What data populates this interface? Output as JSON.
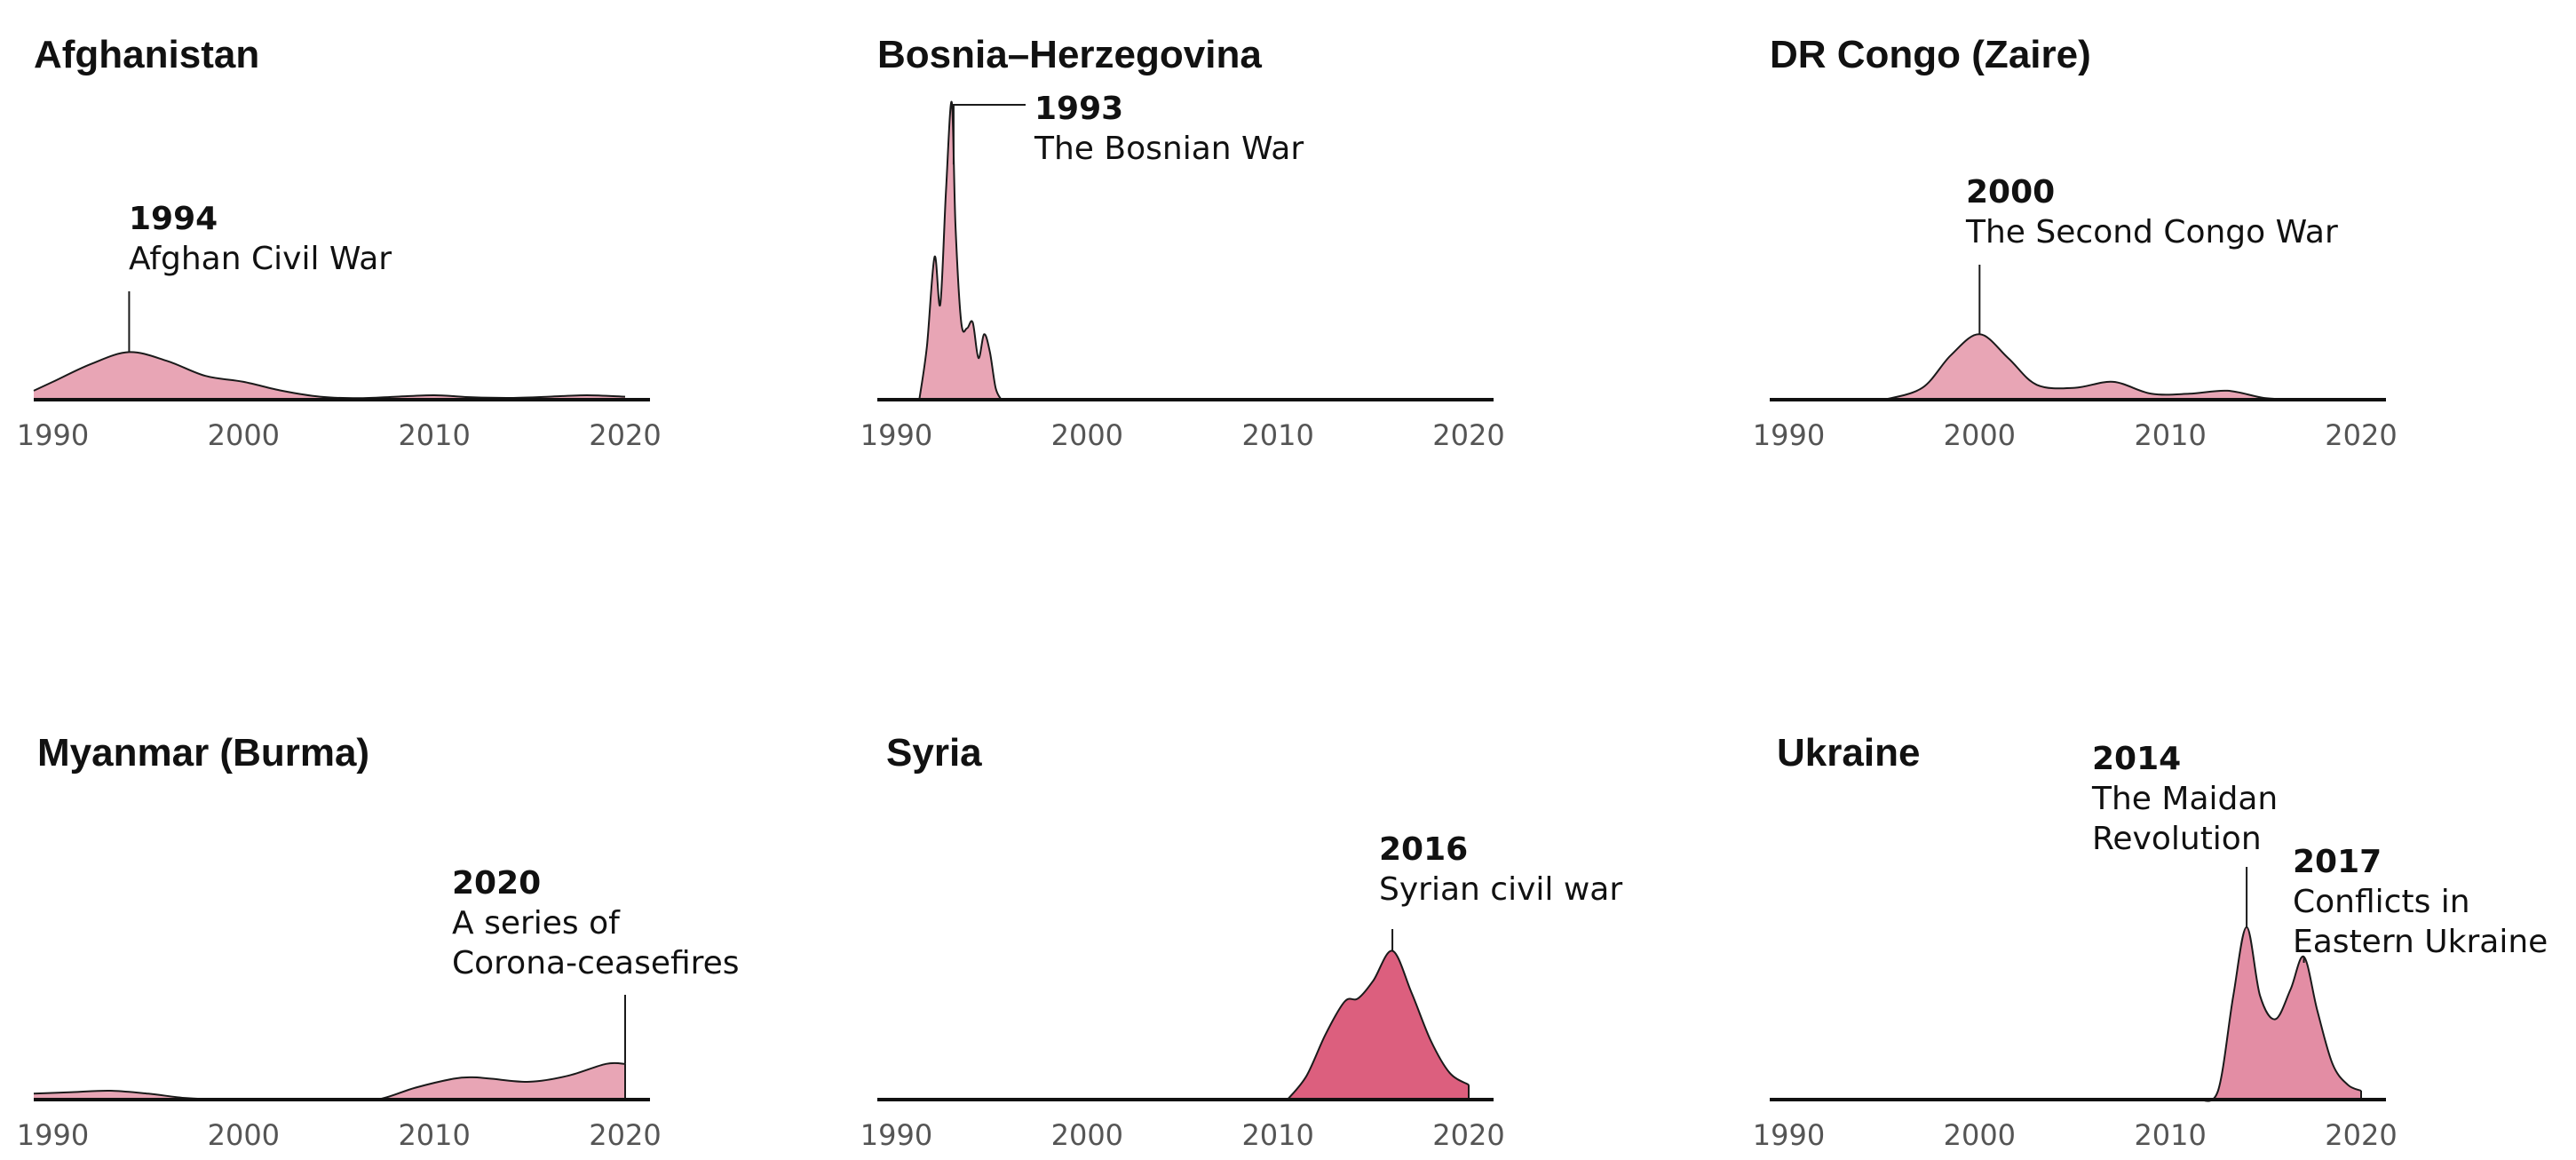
{
  "chart_data": [
    {
      "type": "area",
      "title": "Afghanistan",
      "xlim": [
        1989,
        2020
      ],
      "ylim": [
        0,
        1
      ],
      "x_ticks": [
        "1990",
        "2000",
        "2010",
        "2020"
      ],
      "color": "#e8a5b5",
      "x": [
        1989,
        1990,
        1992,
        1994,
        1996,
        1998,
        2000,
        2002,
        2004,
        2006,
        2008,
        2010,
        2012,
        2014,
        2016,
        2018,
        2020
      ],
      "y": [
        0.03,
        0.06,
        0.12,
        0.16,
        0.13,
        0.08,
        0.06,
        0.03,
        0.01,
        0.005,
        0.01,
        0.015,
        0.008,
        0.006,
        0.01,
        0.015,
        0.01
      ],
      "annotations": [
        {
          "x": 1994,
          "year": "1994",
          "lines": [
            "Afghan Civil War"
          ]
        }
      ]
    },
    {
      "type": "area",
      "title": "Bosnia–Herzegovina",
      "xlim": [
        1989,
        2020
      ],
      "ylim": [
        0,
        1
      ],
      "x_ticks": [
        "1990",
        "2000",
        "2010",
        "2020"
      ],
      "color": "#e8a5b5",
      "x": [
        1991.2,
        1991.6,
        1992.0,
        1992.3,
        1992.6,
        1992.9,
        1993.1,
        1993.4,
        1993.7,
        1994.0,
        1994.3,
        1994.6,
        1994.9,
        1995.2,
        1995.5
      ],
      "y": [
        0,
        0.18,
        0.48,
        0.32,
        0.7,
        1.0,
        0.58,
        0.26,
        0.24,
        0.26,
        0.14,
        0.22,
        0.16,
        0.04,
        0
      ],
      "annotations": [
        {
          "x": 1993,
          "year": "1993",
          "lines": [
            "The Bosnian War"
          ]
        }
      ]
    },
    {
      "type": "area",
      "title": "DR Congo (Zaire)",
      "xlim": [
        1989,
        2020
      ],
      "ylim": [
        0,
        1
      ],
      "x_ticks": [
        "1990",
        "2000",
        "2010",
        "2020"
      ],
      "color": "#e8a5b5",
      "x": [
        1995,
        1997,
        1998.5,
        2000,
        2001.5,
        2003,
        2005,
        2007,
        2009,
        2011,
        2013,
        2015,
        2017
      ],
      "y": [
        0,
        0.04,
        0.15,
        0.22,
        0.14,
        0.05,
        0.04,
        0.06,
        0.02,
        0.02,
        0.03,
        0.005,
        0
      ],
      "annotations": [
        {
          "x": 2000,
          "year": "2000",
          "lines": [
            "The Second Congo War"
          ]
        }
      ]
    },
    {
      "type": "area",
      "title": "Myanmar (Burma)",
      "xlim": [
        1989,
        2020
      ],
      "ylim": [
        0,
        1
      ],
      "x_ticks": [
        "1990",
        "2000",
        "2010",
        "2020"
      ],
      "color": "#e8a5b5",
      "x": [
        1989,
        1991,
        1993,
        1995,
        1997,
        1999,
        2001,
        2003,
        2005,
        2007,
        2009,
        2011,
        2012,
        2013,
        2015,
        2017,
        2019,
        2020
      ],
      "y": [
        0.02,
        0.025,
        0.03,
        0.02,
        0.005,
        0,
        0,
        0,
        0,
        0,
        0.04,
        0.07,
        0.075,
        0.07,
        0.06,
        0.08,
        0.12,
        0.12
      ],
      "annotations": [
        {
          "x": 2020,
          "year": "2020",
          "lines": [
            "A series of",
            "Corona-ceasefires"
          ]
        }
      ]
    },
    {
      "type": "area",
      "title": "Syria",
      "xlim": [
        1989,
        2020
      ],
      "ylim": [
        0,
        1
      ],
      "x_ticks": [
        "1990",
        "2000",
        "2010",
        "2020"
      ],
      "color": "#dc5f7e",
      "x": [
        2010.5,
        2011.5,
        2012.5,
        2013.5,
        2014.2,
        2015,
        2016,
        2017,
        2018,
        2019,
        2020
      ],
      "y": [
        0,
        0.08,
        0.22,
        0.33,
        0.34,
        0.4,
        0.5,
        0.36,
        0.2,
        0.09,
        0.05
      ],
      "annotations": [
        {
          "x": 2016,
          "year": "2016",
          "lines": [
            "Syrian civil war"
          ]
        }
      ]
    },
    {
      "type": "area",
      "title": "Ukraine",
      "xlim": [
        1989,
        2020
      ],
      "ylim": [
        0,
        1
      ],
      "x_ticks": [
        "1990",
        "2000",
        "2010",
        "2020"
      ],
      "color": "#e38da4",
      "x": [
        2011.5,
        2012.5,
        2013.3,
        2014,
        2014.7,
        2015.5,
        2016.3,
        2017,
        2017.7,
        2018.5,
        2019.3,
        2020
      ],
      "y": [
        0,
        0.03,
        0.35,
        0.58,
        0.35,
        0.27,
        0.37,
        0.48,
        0.3,
        0.12,
        0.05,
        0.03
      ],
      "annotations": [
        {
          "x": 2014,
          "year": "2014",
          "lines": [
            "The Maidan",
            "Revolution"
          ]
        },
        {
          "x": 2017,
          "year": "2017",
          "lines": [
            "Conflicts in",
            "Eastern Ukraine"
          ]
        }
      ]
    }
  ]
}
